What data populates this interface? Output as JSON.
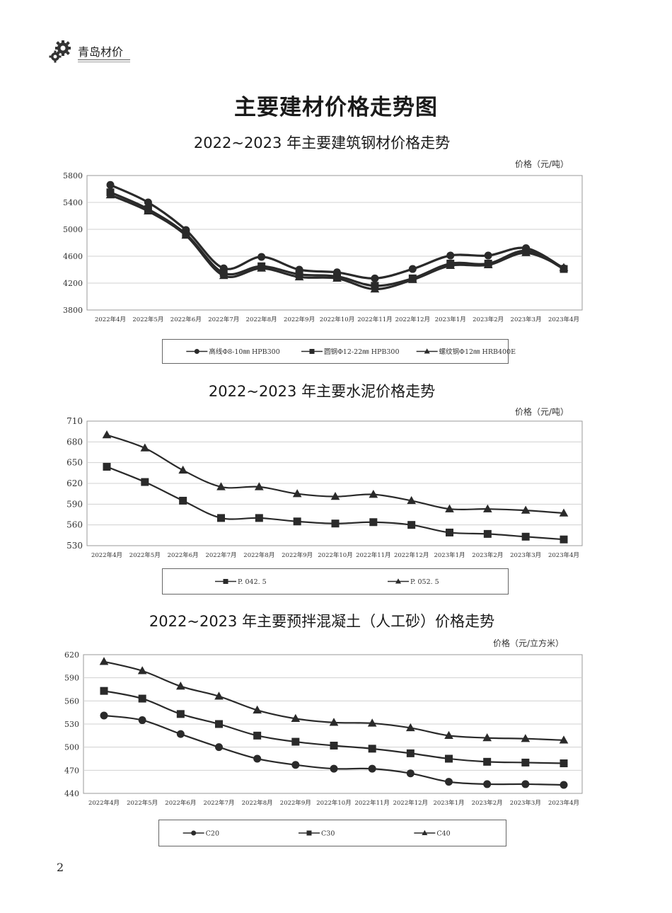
{
  "header": {
    "title": "青岛材价",
    "logo_icon": "gears-icon"
  },
  "page_title": "主要建材价格走势图",
  "page_number": "2",
  "colors": {
    "line": "#2a2a2a",
    "grid": "#d0d0d0",
    "frame": "#999999"
  },
  "chart_data": [
    {
      "type": "line",
      "title": "2022~2023 年主要建筑钢材价格走势",
      "unit_label": "价格（元/吨）",
      "categories": [
        "2022年4月",
        "2022年5月",
        "2022年6月",
        "2022年7月",
        "2022年8月",
        "2022年9月",
        "2022年10月",
        "2022年11月",
        "2022年12月",
        "2023年1月",
        "2023年2月",
        "2023年3月",
        "2023年4月"
      ],
      "ylim": [
        3800,
        5800
      ],
      "yticks": [
        3800,
        4200,
        4600,
        5000,
        5400,
        5800
      ],
      "grid": true,
      "legend_position": "bottom",
      "series": [
        {
          "name": "高线Φ8-10㎜ HPB300",
          "marker": "circle",
          "values": [
            5660,
            5400,
            4990,
            4420,
            4590,
            4400,
            4360,
            4270,
            4410,
            4610,
            4610,
            4720,
            4420
          ]
        },
        {
          "name": "圆钢Φ12-22㎜ HPB300",
          "marker": "square",
          "values": [
            5550,
            5300,
            4930,
            4350,
            4450,
            4330,
            4300,
            4160,
            4270,
            4490,
            4490,
            4680,
            4410
          ]
        },
        {
          "name": "螺纹钢Φ12㎜ HRB400E",
          "marker": "triangle",
          "values": [
            5510,
            5270,
            4910,
            4310,
            4420,
            4290,
            4270,
            4110,
            4250,
            4460,
            4470,
            4650,
            4430
          ]
        }
      ]
    },
    {
      "type": "line",
      "title": "2022~2023 年主要水泥价格走势",
      "unit_label": "价格（元/吨）",
      "categories": [
        "2022年4月",
        "2022年5月",
        "2022年6月",
        "2022年7月",
        "2022年8月",
        "2022年9月",
        "2022年10月",
        "2022年11月",
        "2022年12月",
        "2023年1月",
        "2023年2月",
        "2023年3月",
        "2023年4月"
      ],
      "ylim": [
        530,
        710
      ],
      "yticks": [
        530,
        560,
        590,
        620,
        650,
        680,
        710
      ],
      "grid": true,
      "legend_position": "bottom",
      "series": [
        {
          "name": "P. 042. 5",
          "marker": "square",
          "values": [
            644,
            622,
            595,
            570,
            570,
            565,
            562,
            564,
            560,
            549,
            547,
            543,
            539
          ]
        },
        {
          "name": "P. 052. 5",
          "marker": "triangle",
          "values": [
            690,
            671,
            639,
            615,
            615,
            605,
            601,
            604,
            595,
            583,
            583,
            581,
            577
          ]
        }
      ]
    },
    {
      "type": "line",
      "title": "2022~2023 年主要预拌混凝土（人工砂）价格走势",
      "unit_label": "价格（元/立方米）",
      "categories": [
        "2022年4月",
        "2022年5月",
        "2022年6月",
        "2022年7月",
        "2022年8月",
        "2022年9月",
        "2022年10月",
        "2022年11月",
        "2022年12月",
        "2023年1月",
        "2023年2月",
        "2023年3月",
        "2023年4月"
      ],
      "ylim": [
        440,
        620
      ],
      "yticks": [
        440,
        470,
        500,
        530,
        560,
        590,
        620
      ],
      "grid": true,
      "legend_position": "bottom",
      "series": [
        {
          "name": "C20",
          "marker": "circle",
          "values": [
            541,
            535,
            517,
            500,
            485,
            477,
            472,
            472,
            466,
            455,
            452,
            452,
            451
          ]
        },
        {
          "name": "C30",
          "marker": "square",
          "values": [
            573,
            563,
            543,
            530,
            515,
            507,
            502,
            498,
            492,
            485,
            481,
            480,
            479
          ]
        },
        {
          "name": "C40",
          "marker": "triangle",
          "values": [
            611,
            599,
            579,
            566,
            548,
            537,
            532,
            531,
            525,
            515,
            512,
            511,
            509
          ]
        }
      ]
    }
  ]
}
